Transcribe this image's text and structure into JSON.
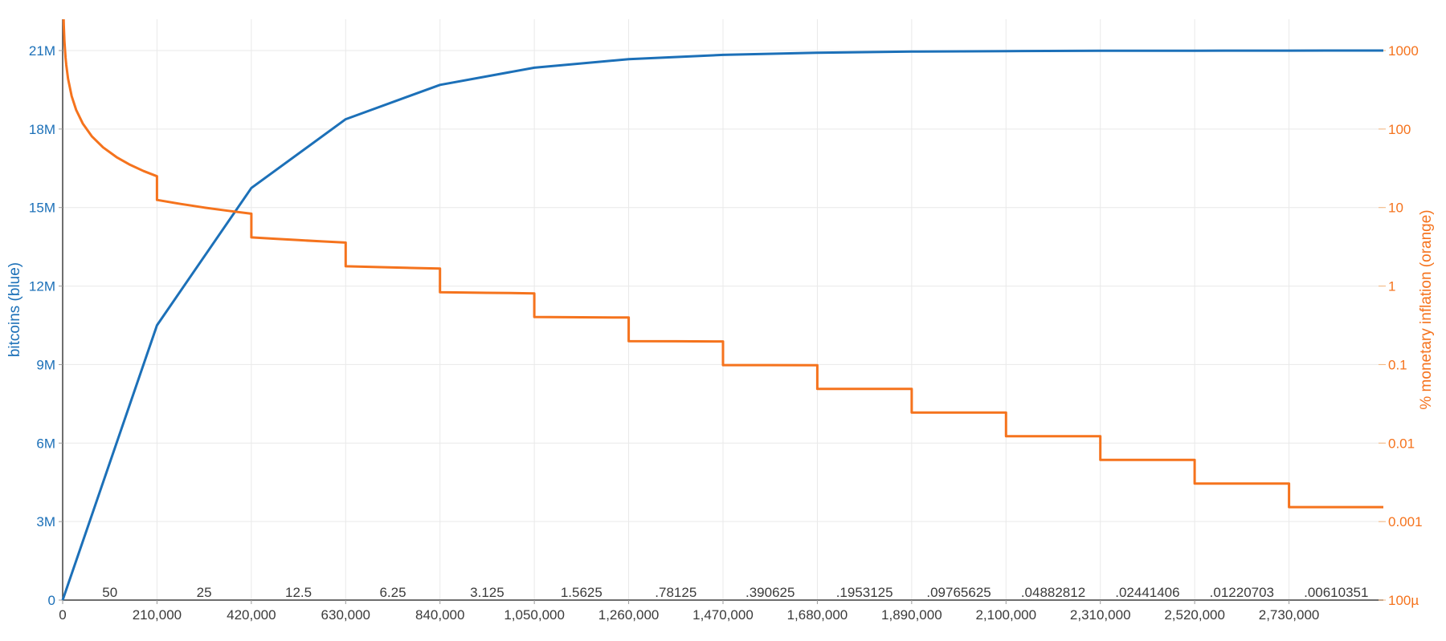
{
  "chart_data": {
    "type": "line",
    "title": "",
    "grid": true,
    "background": "#ffffff",
    "axis_line_color": "#3f3f3f",
    "gridline_color": "#e9e9e9",
    "x_axis": {
      "label": "",
      "range": [
        0,
        2940000
      ],
      "tick_color": "#3b3b3b",
      "ticks": [
        {
          "value": 0,
          "label": "0"
        },
        {
          "value": 210000,
          "label": "210,000"
        },
        {
          "value": 420000,
          "label": "420,000"
        },
        {
          "value": 630000,
          "label": "630,000"
        },
        {
          "value": 840000,
          "label": "840,000"
        },
        {
          "value": 1050000,
          "label": "1,050,000"
        },
        {
          "value": 1260000,
          "label": "1,260,000"
        },
        {
          "value": 1470000,
          "label": "1,470,000"
        },
        {
          "value": 1680000,
          "label": "1,680,000"
        },
        {
          "value": 1890000,
          "label": "1,890,000"
        },
        {
          "value": 2100000,
          "label": "2,100,000"
        },
        {
          "value": 2310000,
          "label": "2,310,000"
        },
        {
          "value": 2520000,
          "label": "2,520,000"
        },
        {
          "value": 2730000,
          "label": "2,730,000"
        }
      ]
    },
    "left_axis": {
      "title": "bitcoins (blue)",
      "color": "#1c70b8",
      "range": [
        0,
        21000000
      ],
      "ticks": [
        {
          "value": 0,
          "label": "0"
        },
        {
          "value": 3000000,
          "label": "3M"
        },
        {
          "value": 6000000,
          "label": "6M"
        },
        {
          "value": 9000000,
          "label": "9M"
        },
        {
          "value": 12000000,
          "label": "12M"
        },
        {
          "value": 15000000,
          "label": "15M"
        },
        {
          "value": 18000000,
          "label": "18M"
        },
        {
          "value": 21000000,
          "label": "21M"
        }
      ]
    },
    "right_axis": {
      "title": "% monetary inflation (orange)",
      "color": "#f5731d",
      "scale": "log",
      "range": [
        0.0001,
        1000
      ],
      "ticks": [
        {
          "value": 1000,
          "label": "1000"
        },
        {
          "value": 100,
          "label": "100"
        },
        {
          "value": 10,
          "label": "10"
        },
        {
          "value": 1,
          "label": "1"
        },
        {
          "value": 0.1,
          "label": "0.1"
        },
        {
          "value": 0.01,
          "label": "0.01"
        },
        {
          "value": 0.001,
          "label": "0.001"
        },
        {
          "value": 0.0001,
          "label": "100µ"
        }
      ]
    },
    "era_reward_labels": {
      "color": "#3b3b3b",
      "items": [
        {
          "label": "50",
          "from": 0,
          "to": 210000
        },
        {
          "label": "25",
          "from": 210000,
          "to": 420000
        },
        {
          "label": "12.5",
          "from": 420000,
          "to": 630000
        },
        {
          "label": "6.25",
          "from": 630000,
          "to": 840000
        },
        {
          "label": "3.125",
          "from": 840000,
          "to": 1050000
        },
        {
          "label": "1.5625",
          "from": 1050000,
          "to": 1260000
        },
        {
          "label": ".78125",
          "from": 1260000,
          "to": 1470000
        },
        {
          "label": ".390625",
          "from": 1470000,
          "to": 1680000
        },
        {
          "label": ".1953125",
          "from": 1680000,
          "to": 1890000
        },
        {
          "label": ".09765625",
          "from": 1890000,
          "to": 2100000
        },
        {
          "label": ".04882812",
          "from": 2100000,
          "to": 2310000
        },
        {
          "label": ".02441406",
          "from": 2310000,
          "to": 2520000
        },
        {
          "label": ".01220703",
          "from": 2520000,
          "to": 2730000
        },
        {
          "label": ".00610351",
          "from": 2730000,
          "to": 2940000
        }
      ]
    },
    "series": [
      {
        "name": "bitcoins",
        "axis": "left",
        "color": "#1c70b8",
        "points": [
          [
            0,
            0
          ],
          [
            210000,
            10500000
          ],
          [
            420000,
            15750000
          ],
          [
            630000,
            18375000
          ],
          [
            840000,
            19687500
          ],
          [
            1050000,
            20343750
          ],
          [
            1260000,
            20671875
          ],
          [
            1470000,
            20835938
          ],
          [
            1680000,
            20917969
          ],
          [
            1890000,
            20958984
          ],
          [
            2100000,
            20979492
          ],
          [
            2310000,
            20989746
          ],
          [
            2520000,
            20994873
          ],
          [
            2730000,
            20997437
          ],
          [
            2940000,
            20998718
          ]
        ]
      },
      {
        "name": "% monetary inflation",
        "axis": "right",
        "color": "#f5731d",
        "points": [
          [
            2099,
            2504
          ],
          [
            2500,
            2102.4
          ],
          [
            4000,
            1314
          ],
          [
            6500,
            808.6
          ],
          [
            8000,
            657
          ],
          [
            12000,
            438
          ],
          [
            20000,
            262.8
          ],
          [
            30000,
            175.2
          ],
          [
            45000,
            116.8
          ],
          [
            65000,
            80.86
          ],
          [
            90000,
            58.4
          ],
          [
            120000,
            43.8
          ],
          [
            150000,
            35.04
          ],
          [
            180000,
            29.2
          ],
          [
            210000,
            25.0286
          ],
          [
            210000,
            12.5143
          ],
          [
            262500,
            11.1238
          ],
          [
            315000,
            10.0114
          ],
          [
            367500,
            9.1019
          ],
          [
            420000,
            8.3429
          ],
          [
            420000,
            4.1714
          ],
          [
            472500,
            4.0046
          ],
          [
            525000,
            3.8505
          ],
          [
            577500,
            3.708
          ],
          [
            630000,
            3.5755
          ],
          [
            630000,
            1.78775
          ],
          [
            682500,
            1.7565
          ],
          [
            735000,
            1.72625
          ],
          [
            787500,
            1.697
          ],
          [
            840000,
            1.66857
          ],
          [
            840000,
            0.834286
          ],
          [
            892500,
            0.827391
          ],
          [
            945000,
            0.820608
          ],
          [
            997500,
            0.813938
          ],
          [
            1050000,
            0.807354
          ],
          [
            1050000,
            0.403677
          ],
          [
            1155000,
            0.400456
          ],
          [
            1260000,
            0.397256
          ],
          [
            1260000,
            0.198628
          ],
          [
            1365000,
            0.197855
          ],
          [
            1470000,
            0.197069
          ],
          [
            1470000,
            0.0985345
          ],
          [
            1575000,
            0.098344
          ],
          [
            1680000,
            0.0981475
          ],
          [
            1680000,
            0.0490737
          ],
          [
            1890000,
            0.0489774
          ],
          [
            1890000,
            0.0244887
          ],
          [
            2100000,
            0.0244647
          ],
          [
            2100000,
            0.0122323
          ],
          [
            2310000,
            0.0122263
          ],
          [
            2310000,
            0.00611317
          ],
          [
            2520000,
            0.00611168
          ],
          [
            2520000,
            0.00305584
          ],
          [
            2730000,
            0.00305547
          ],
          [
            2730000,
            0.00152773
          ],
          [
            2940000,
            0.00152764
          ]
        ]
      }
    ]
  }
}
